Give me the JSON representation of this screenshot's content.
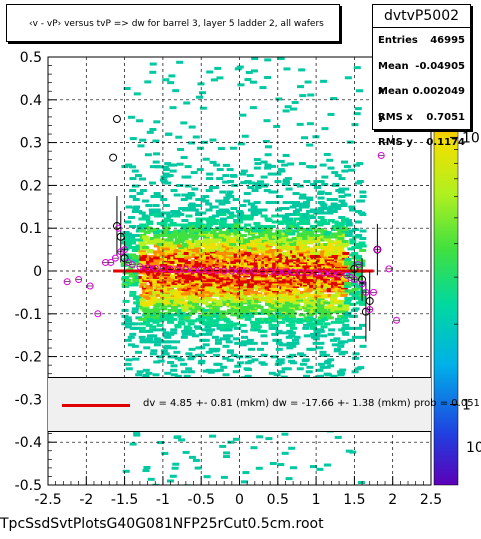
{
  "title": "‹v - vP›     versus  tvP =>  dw for barrel 3, layer 5 ladder 2, all wafers",
  "stats": {
    "name": "dvtvP5002",
    "rows": [
      {
        "label": "Entries",
        "value": "46995"
      },
      {
        "label": "Mean x",
        "value": "-0.04905"
      },
      {
        "label": "Mean y",
        "value": "0.002049"
      },
      {
        "label": "RMS x",
        "value": "0.7051"
      },
      {
        "label": "RMS y",
        "value": "0.1174"
      }
    ]
  },
  "fit_text": "dv =    4.85 +-  0.81 (mkm) dw =  -17.66 +-  1.38 (mkm) prob = 0.051",
  "footer": "TpcSsdSvtPlotsG40G081NFP25rCut0.5cm.root",
  "colors": {
    "fit_line": "#e00000",
    "marker_open": "#e000e0",
    "marker_black": "#000000"
  },
  "chart_data": {
    "type": "heatmap",
    "xlim": [
      -2.5,
      2.5
    ],
    "ylim": [
      -0.5,
      0.5
    ],
    "x_ticks": [
      "-2.5",
      "-2",
      "-1.5",
      "-1",
      "-0.5",
      "0",
      "0.5",
      "1",
      "1.5",
      "2",
      "2.5"
    ],
    "y_ticks": [
      "-0.5",
      "-0.4",
      "-0.3",
      "-0.2",
      "-0.1",
      "0",
      "0.1",
      "0.2",
      "0.3",
      "0.4",
      "0.5"
    ],
    "z_ticks": [
      "1",
      "10"
    ],
    "zlim": [
      0.5,
      20
    ],
    "log_z": true,
    "grid": true,
    "fit_y": 0.0,
    "fit_x_range": [
      -1.65,
      1.75
    ],
    "profile_points": [
      {
        "x": -2.25,
        "y": -0.025
      },
      {
        "x": -2.1,
        "y": -0.02
      },
      {
        "x": -1.95,
        "y": -0.035
      },
      {
        "x": -1.85,
        "y": -0.1
      },
      {
        "x": -1.75,
        "y": 0.02
      },
      {
        "x": -1.68,
        "y": 0.02
      },
      {
        "x": -1.62,
        "y": 0.03
      },
      {
        "x": -1.58,
        "y": 0.1
      },
      {
        "x": -1.55,
        "y": 0.045
      },
      {
        "x": -1.5,
        "y": 0.05
      },
      {
        "x": -1.45,
        "y": 0.02
      },
      {
        "x": -1.4,
        "y": 0.015
      },
      {
        "x": -1.3,
        "y": 0.01
      },
      {
        "x": -1.2,
        "y": 0.008
      },
      {
        "x": -1.1,
        "y": 0.006
      },
      {
        "x": -1.0,
        "y": 0.005
      },
      {
        "x": -0.9,
        "y": 0.004
      },
      {
        "x": -0.8,
        "y": 0.003
      },
      {
        "x": -0.7,
        "y": 0.003
      },
      {
        "x": -0.6,
        "y": 0.002
      },
      {
        "x": -0.5,
        "y": 0.002
      },
      {
        "x": -0.4,
        "y": 0.001
      },
      {
        "x": -0.3,
        "y": 0.001
      },
      {
        "x": -0.2,
        "y": 0.0
      },
      {
        "x": -0.1,
        "y": 0.0
      },
      {
        "x": 0.0,
        "y": 0.0
      },
      {
        "x": 0.1,
        "y": 0.0
      },
      {
        "x": 0.2,
        "y": 0.0
      },
      {
        "x": 0.3,
        "y": -0.001
      },
      {
        "x": 0.4,
        "y": -0.001
      },
      {
        "x": 0.5,
        "y": -0.002
      },
      {
        "x": 0.6,
        "y": -0.002
      },
      {
        "x": 0.7,
        "y": -0.003
      },
      {
        "x": 0.8,
        "y": -0.003
      },
      {
        "x": 0.9,
        "y": -0.004
      },
      {
        "x": 1.0,
        "y": -0.004
      },
      {
        "x": 1.1,
        "y": -0.005
      },
      {
        "x": 1.2,
        "y": -0.006
      },
      {
        "x": 1.3,
        "y": -0.008
      },
      {
        "x": 1.4,
        "y": -0.01
      },
      {
        "x": 1.45,
        "y": -0.015
      },
      {
        "x": 1.5,
        "y": -0.02
      },
      {
        "x": 1.55,
        "y": 0.015
      },
      {
        "x": 1.6,
        "y": -0.03
      },
      {
        "x": 1.65,
        "y": -0.05
      },
      {
        "x": 1.7,
        "y": -0.09
      },
      {
        "x": 1.75,
        "y": -0.05
      },
      {
        "x": 1.8,
        "y": 0.05
      },
      {
        "x": 1.85,
        "y": 0.27
      },
      {
        "x": 1.95,
        "y": 0.005
      },
      {
        "x": 2.05,
        "y": -0.115
      }
    ],
    "black_points": [
      {
        "x": -1.6,
        "y": 0.355,
        "err": 0.0
      },
      {
        "x": -1.65,
        "y": 0.265,
        "err": 0.0
      },
      {
        "x": -1.6,
        "y": 0.105,
        "err": 0.07
      },
      {
        "x": -1.55,
        "y": 0.08,
        "err": 0.06
      },
      {
        "x": -1.5,
        "y": 0.03,
        "err": 0.04
      },
      {
        "x": 1.5,
        "y": 0.005,
        "err": 0.03
      },
      {
        "x": 1.6,
        "y": -0.02,
        "err": 0.05
      },
      {
        "x": 1.65,
        "y": -0.095,
        "err": 0.07
      },
      {
        "x": 1.7,
        "y": -0.07,
        "err": 0.07
      },
      {
        "x": 1.8,
        "y": 0.05,
        "err": 0.06
      }
    ]
  }
}
